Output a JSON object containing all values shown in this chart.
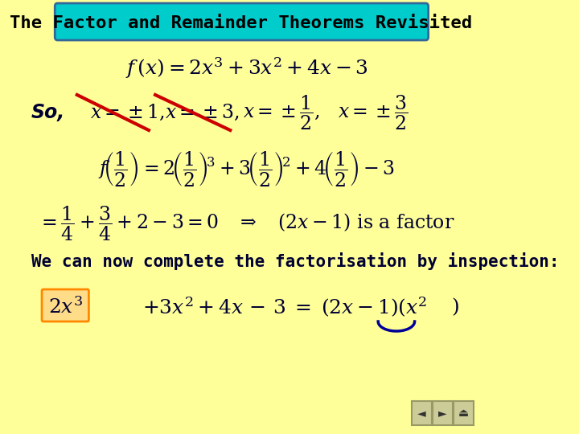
{
  "bg_color": "#FFFF99",
  "title_text": "The Factor and Remainder Theorems Revisited",
  "title_bg": "#00CCCC",
  "title_border": "#336699",
  "title_text_color": "#000000",
  "main_text_color": "#000033",
  "so_label": "So,",
  "line1_math": "$f(x) = 2x^3 + 3x^2 + 4x - 3$",
  "line2_math": "$x = \\pm 1,\\quad x = \\pm 3,\\quad x = \\pm \\dfrac{1}{2},\\quad x = \\pm \\dfrac{3}{2}$",
  "line3_math": "$f\\!\\left(\\dfrac{1}{2}\\right) = 2\\!\\left(\\dfrac{1}{2}\\right)^{\\!3} + 3\\!\\left(\\dfrac{1}{2}\\right)^{\\!2} + 4\\!\\left(\\dfrac{1}{2}\\right) - 3$",
  "line4_math": "$= \\dfrac{1}{4} + \\dfrac{3}{4} + 2 - 3 = 0 \\quad \\Rightarrow \\quad (2x-1) \\text{ is a factor}$",
  "line5_text": "We can now complete the factorisation by inspection:",
  "line6_math": "$2x^3 + 3x^2 + 4x - 3 = (2x-1)(x^2$",
  "line6_close": "$)$",
  "highlight_box_color": "#FF9900",
  "red_color": "#CC0000",
  "blue_color": "#000099",
  "nav_color": "#CCCC99"
}
